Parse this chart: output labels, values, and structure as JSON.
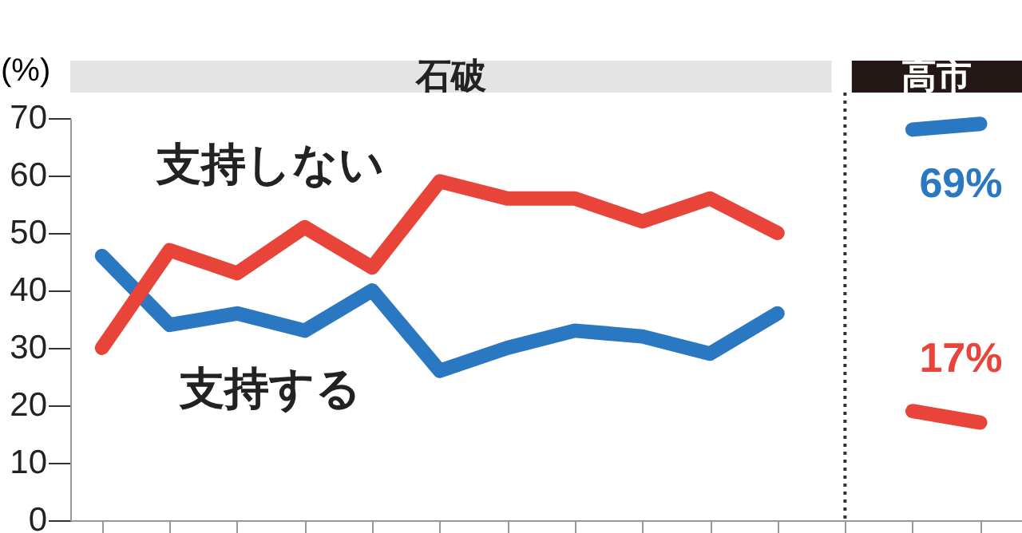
{
  "chart_data": {
    "type": "line",
    "ylabel": "(%)",
    "categories": [
      null,
      null,
      null,
      null,
      null,
      null,
      null,
      null,
      null,
      null,
      null,
      null,
      null,
      null
    ],
    "series": [
      {
        "name": "支持する",
        "color": "#2a78c2",
        "values": [
          46,
          34,
          36,
          33,
          40,
          26,
          30,
          33,
          32,
          29,
          36,
          null,
          null,
          null
        ]
      },
      {
        "name": "支持しない",
        "color": "#e8443a",
        "values": [
          30,
          47,
          43,
          51,
          44,
          59,
          56,
          56,
          52,
          56,
          50,
          null,
          null,
          null
        ]
      },
      {
        "color": "#2a78c2",
        "values": [
          null,
          null,
          null,
          null,
          null,
          null,
          null,
          null,
          null,
          null,
          null,
          null,
          68,
          69
        ],
        "value_labels": [
          null,
          null,
          null,
          null,
          null,
          null,
          null,
          null,
          null,
          null,
          null,
          null,
          null,
          "69%"
        ]
      },
      {
        "color": "#e8443a",
        "values": [
          null,
          null,
          null,
          null,
          null,
          null,
          null,
          null,
          null,
          null,
          null,
          null,
          19,
          17
        ],
        "value_labels": [
          null,
          null,
          null,
          null,
          null,
          null,
          null,
          null,
          null,
          null,
          null,
          null,
          null,
          "17%"
        ]
      }
    ],
    "ylim": [
      0,
      70
    ],
    "yticks": [
      0,
      10,
      20,
      30,
      40,
      50,
      60,
      70
    ],
    "tick_labels": "y",
    "grid": false,
    "legend": false,
    "marker": "none",
    "line_style": "solid",
    "annotations": [
      "石破",
      "高市"
    ]
  }
}
